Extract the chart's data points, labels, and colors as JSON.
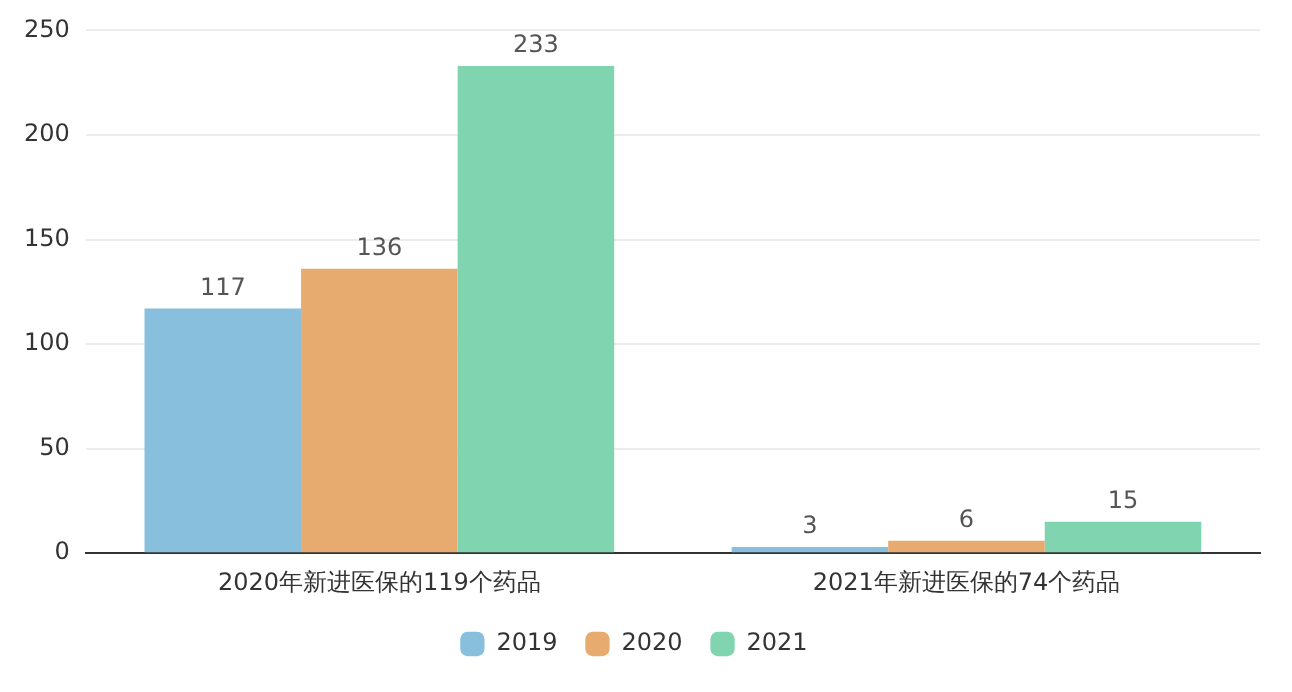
{
  "chart_data": {
    "type": "bar",
    "categories": [
      "2020年新进医保的119个药品",
      "2021年新进医保的74个药品"
    ],
    "series": [
      {
        "name": "2019",
        "color": "#87bfdc",
        "values": [
          117,
          3
        ]
      },
      {
        "name": "2020",
        "color": "#e8ab6f",
        "values": [
          136,
          6
        ]
      },
      {
        "name": "2021",
        "color": "#80d4b0",
        "values": [
          233,
          15
        ]
      }
    ],
    "ylim": [
      0,
      250
    ],
    "yticks": [
      0,
      50,
      100,
      150,
      200,
      250
    ],
    "grid": "y",
    "legend": "bottom",
    "data_labels": true
  }
}
